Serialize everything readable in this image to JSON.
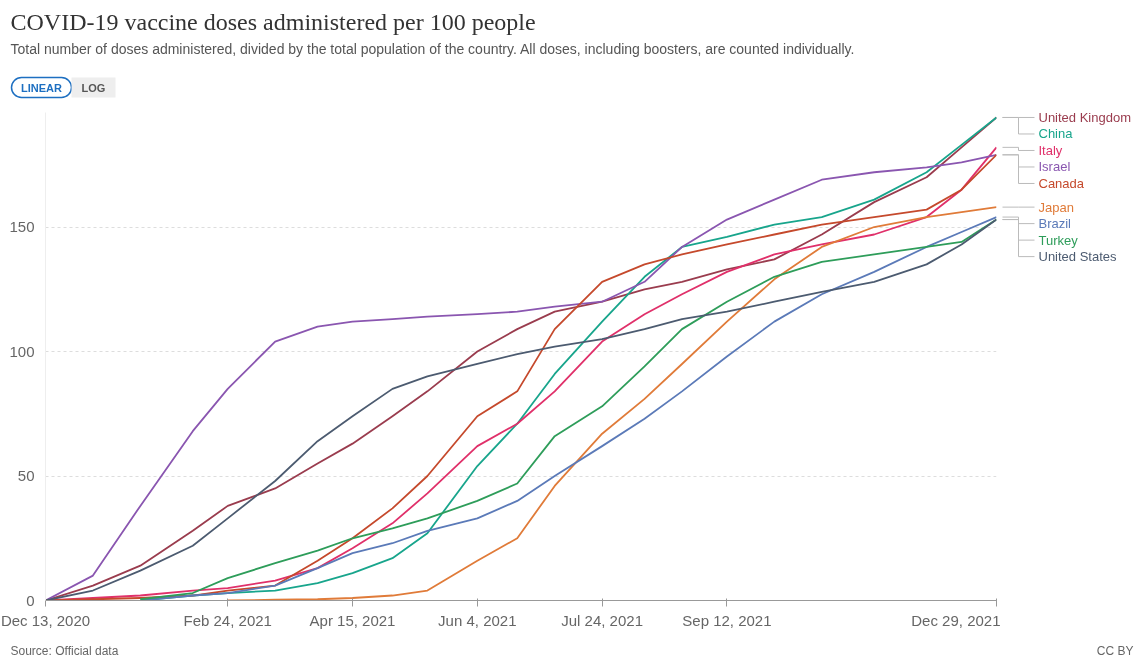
{
  "chart_data": {
    "type": "line",
    "title": "COVID-19 vaccine doses administered per 100 people",
    "subtitle": "Total number of doses administered, divided by the total population of the country. All doses, including boosters, are counted individually.",
    "annotations": [
      "LINEAR",
      "LOG",
      "Source: Official data",
      "CC BY"
    ],
    "x": [
      "2020-12-13",
      "2021-01-01",
      "2021-01-20",
      "2021-02-10",
      "2021-02-24",
      "2021-03-15",
      "2021-04-01",
      "2021-04-15",
      "2021-05-01",
      "2021-05-15",
      "2021-06-04",
      "2021-06-20",
      "2021-07-05",
      "2021-07-24",
      "2021-08-10",
      "2021-08-25",
      "2021-09-12",
      "2021-10-01",
      "2021-10-20",
      "2021-11-10",
      "2021-12-01",
      "2021-12-15",
      "2021-12-29"
    ],
    "xlim": [
      "2020-12-13",
      "2021-12-29"
    ],
    "xticks": [
      {
        "value": "2020-12-13",
        "label": "Dec 13, 2020"
      },
      {
        "value": "2021-02-24",
        "label": "Feb 24, 2021"
      },
      {
        "value": "2021-04-15",
        "label": "Apr 15, 2021"
      },
      {
        "value": "2021-06-04",
        "label": "Jun 4, 2021"
      },
      {
        "value": "2021-07-24",
        "label": "Jul 24, 2021"
      },
      {
        "value": "2021-09-12",
        "label": "Sep 12, 2021"
      },
      {
        "value": "2021-12-29",
        "label": "Dec 29, 2021"
      }
    ],
    "ylim": [
      0,
      196
    ],
    "yticks": [
      0,
      50,
      100,
      150
    ],
    "grid": "y",
    "line_style": "solid",
    "series": [
      {
        "name": "United Kingdom",
        "color": "#9a3c4e",
        "values": [
          0,
          6,
          14,
          28,
          38,
          45,
          55,
          63,
          74,
          84,
          100,
          109,
          116,
          120,
          125,
          128,
          133,
          137,
          147,
          160,
          170,
          182,
          194
        ]
      },
      {
        "name": "China",
        "color": "#18a58c",
        "values": [
          null,
          null,
          0,
          2,
          3,
          4,
          7,
          11,
          17,
          27,
          54,
          71,
          91,
          112,
          130,
          142,
          146,
          151,
          154,
          161,
          172,
          183,
          194
        ]
      },
      {
        "name": "Italy",
        "color": "#e0306a",
        "values": [
          0,
          1,
          2,
          4,
          5,
          8,
          13,
          21,
          31,
          43,
          62,
          71,
          84,
          104,
          115,
          123,
          132,
          139,
          143,
          147,
          154,
          165,
          182
        ]
      },
      {
        "name": "Israel",
        "color": "#8a56b0",
        "values": [
          0,
          10,
          38,
          68,
          85,
          104,
          110,
          112,
          113,
          114,
          115,
          116,
          118,
          120,
          128,
          142,
          153,
          161,
          169,
          172,
          174,
          176,
          179
        ]
      },
      {
        "name": "Canada",
        "color": "#c5492c",
        "values": [
          0,
          0.5,
          1,
          2,
          4,
          6,
          16,
          25,
          37,
          50,
          74,
          84,
          109,
          128,
          135,
          139,
          143,
          147,
          151,
          154,
          157,
          165,
          179
        ]
      },
      {
        "name": "Japan",
        "color": "#e07b39",
        "values": [
          null,
          null,
          null,
          null,
          0,
          0.3,
          0.5,
          1,
          2,
          4,
          16,
          25,
          46,
          67,
          81,
          95,
          112,
          129,
          142,
          150,
          154,
          156,
          158
        ]
      },
      {
        "name": "Brazil",
        "color": "#5b7ab8",
        "values": [
          null,
          null,
          0,
          2,
          3,
          6,
          13,
          19,
          23,
          28,
          33,
          40,
          50,
          62,
          73,
          84,
          98,
          112,
          123,
          132,
          142,
          148,
          154
        ]
      },
      {
        "name": "Turkey",
        "color": "#2e9d5a",
        "values": [
          null,
          null,
          0.5,
          3,
          9,
          15,
          20,
          25,
          29,
          33,
          40,
          47,
          66,
          78,
          94,
          109,
          120,
          130,
          136,
          139,
          142,
          144,
          153
        ]
      },
      {
        "name": "United States",
        "color": "#4c5b70",
        "values": [
          0,
          4,
          12,
          22,
          33,
          48,
          64,
          74,
          85,
          90,
          95,
          99,
          102,
          105,
          109,
          113,
          116,
          120,
          124,
          128,
          135,
          143,
          153
        ]
      }
    ]
  }
}
